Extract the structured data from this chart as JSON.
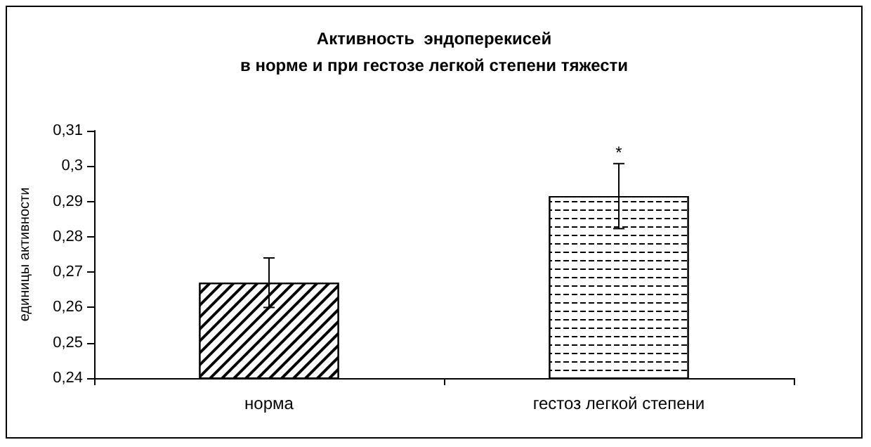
{
  "chart_data": {
    "type": "bar",
    "title": "Активность  эндоперекисей\nв норме и при гестозе легкой степени тяжести",
    "ylabel": "единицы активности",
    "categories": [
      "норма",
      "гестоз легкой степени"
    ],
    "values": [
      0.267,
      0.2915
    ],
    "errors": [
      0.007,
      0.0092
    ],
    "colors": [
      "#ffffff",
      "#ffffff"
    ],
    "ylim": [
      0.24,
      0.31
    ],
    "yticks": [
      {
        "value": 0.24,
        "label": "0,24"
      },
      {
        "value": 0.25,
        "label": "0,25"
      },
      {
        "value": 0.26,
        "label": "0,26"
      },
      {
        "value": 0.27,
        "label": "0,27"
      },
      {
        "value": 0.28,
        "label": "0,28"
      },
      {
        "value": 0.29,
        "label": "0,29"
      },
      {
        "value": 0.3,
        "label": "0,3"
      },
      {
        "value": 0.31,
        "label": "0,31"
      }
    ],
    "annotations": [
      {
        "text": "*",
        "x": "гестоз легкой степени",
        "y": 0.3007
      }
    ],
    "grid": false
  }
}
